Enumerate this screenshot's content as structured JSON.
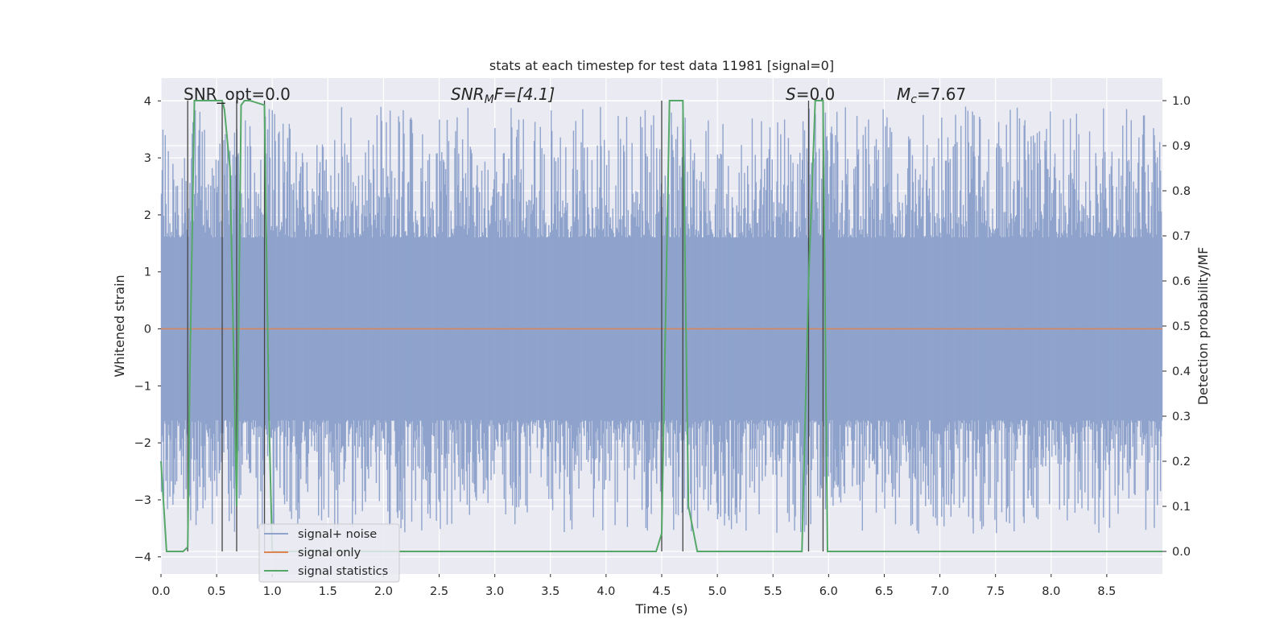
{
  "chart_data": {
    "type": "line",
    "title": "stats at each timestep for test data 11981 [signal=0]",
    "xlabel": "Time (s)",
    "ylabel_left": "Whitened strain",
    "ylabel_right": "Detection probability/MF",
    "xlim": [
      0.0,
      9.0
    ],
    "ylim_left": [
      -4.3,
      4.4
    ],
    "ylim_right": [
      -0.05,
      1.05
    ],
    "xticks": [
      "0.0",
      "0.5",
      "1.0",
      "1.5",
      "2.0",
      "2.5",
      "3.0",
      "3.5",
      "4.0",
      "4.5",
      "5.0",
      "5.5",
      "6.0",
      "6.5",
      "7.0",
      "7.5",
      "8.0",
      "8.5"
    ],
    "yticks_left": [
      "4",
      "3",
      "2",
      "1",
      "0",
      "−1",
      "−2",
      "−3",
      "−4"
    ],
    "yticks_right": [
      "1.0",
      "0.9",
      "0.8",
      "0.7",
      "0.6",
      "0.5",
      "0.4",
      "0.3",
      "0.2",
      "0.1",
      "0.0"
    ],
    "grid": true,
    "legend_placement": "bottom-left",
    "annotations": {
      "snr_opt": "SNR_opt=0.0",
      "snr_mf_main": "SNR",
      "snr_mf_sub": "M",
      "snr_mf_tail": "F=[4.1]",
      "s_main": "S",
      "s_tail": "=0.0",
      "mc_main": "M",
      "mc_sub": "c",
      "mc_tail": "=7.67"
    },
    "series": [
      {
        "name": "signal+ noise",
        "color": "#8fa3cc",
        "noise_band_1sigma": [
          -1.6,
          1.6
        ],
        "typical_extremes": [
          -3.6,
          3.9
        ]
      },
      {
        "name": "signal only",
        "color": "#dd8452",
        "constant_value": 0.0
      },
      {
        "name": "signal statistics",
        "color": "#55a868",
        "axis": "right",
        "x": [
          0.0,
          0.05,
          0.2,
          0.24,
          0.26,
          0.3,
          0.32,
          0.55,
          0.57,
          0.62,
          0.68,
          0.72,
          0.75,
          0.8,
          0.93,
          0.97,
          1.0,
          4.45,
          4.5,
          4.57,
          4.69,
          4.74,
          4.82,
          4.9,
          5.76,
          5.82,
          5.88,
          5.91,
          5.95,
          5.99,
          6.1,
          9.0
        ],
        "y": [
          0.2,
          0.0,
          0.0,
          0.01,
          0.4,
          1.0,
          1.0,
          1.0,
          0.98,
          0.85,
          0.1,
          0.99,
          1.0,
          1.0,
          0.99,
          0.3,
          0.0,
          0.0,
          0.04,
          1.0,
          1.0,
          0.1,
          0.0,
          0.0,
          0.0,
          0.6,
          1.0,
          1.0,
          1.0,
          0.0,
          0.0,
          0.0
        ]
      }
    ],
    "vertical_markers": [
      0.24,
      0.55,
      0.68,
      0.93,
      4.5,
      4.69,
      5.82,
      5.95
    ]
  }
}
